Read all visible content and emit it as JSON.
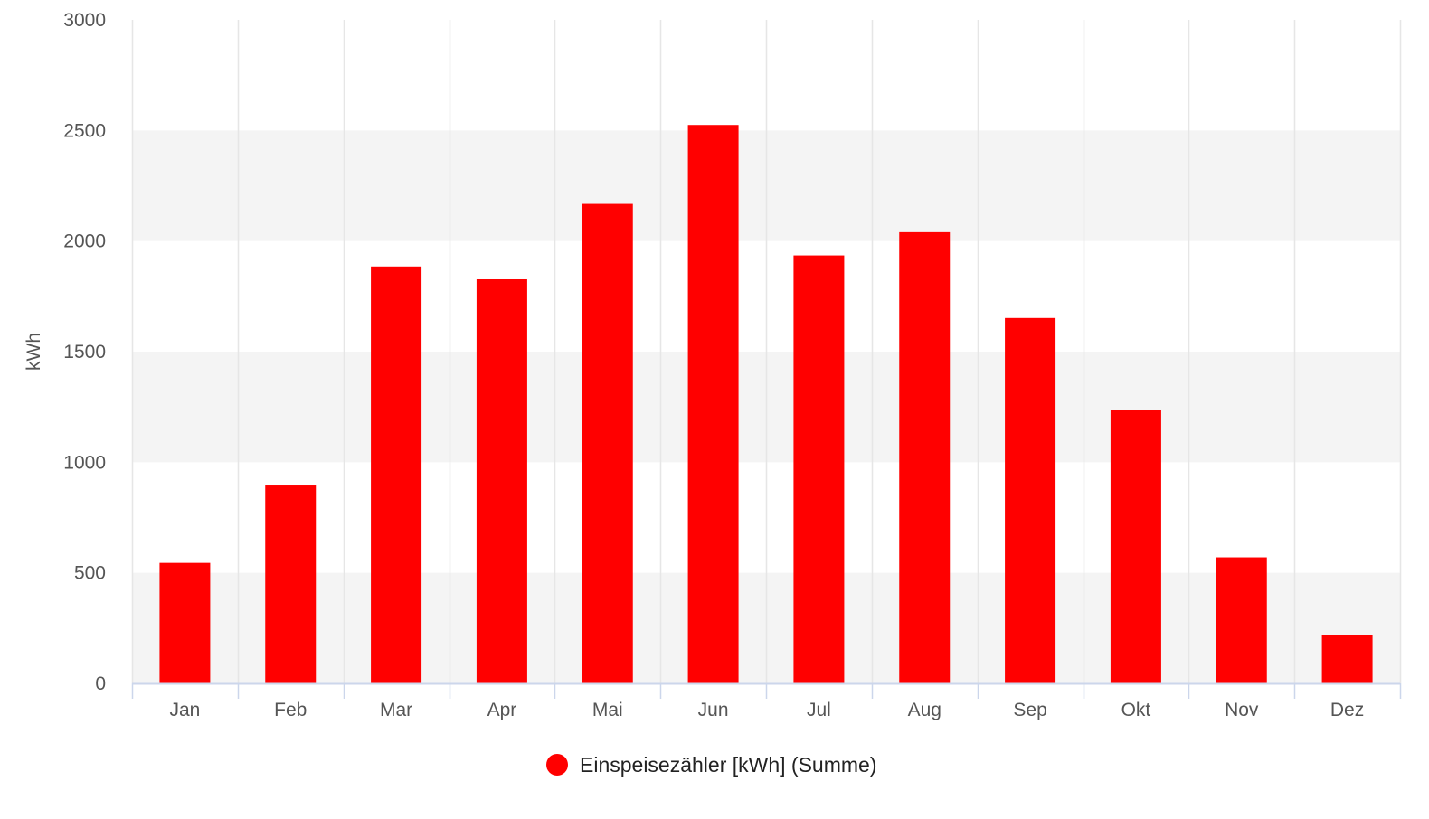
{
  "chart_data": {
    "type": "bar",
    "categories": [
      "Jan",
      "Feb",
      "Mar",
      "Apr",
      "Mai",
      "Jun",
      "Jul",
      "Aug",
      "Sep",
      "Okt",
      "Nov",
      "Dez"
    ],
    "series": [
      {
        "name": "Einspeisezähler [kWh] (Summe)",
        "color": "#ff0000",
        "values": [
          545,
          895,
          1885,
          1827,
          2168,
          2525,
          1935,
          2040,
          1652,
          1238,
          570,
          220
        ]
      }
    ],
    "ylabel": "kWh",
    "ylim": [
      0,
      3000
    ],
    "yticks": [
      0,
      500,
      1000,
      1500,
      2000,
      2500,
      3000
    ],
    "grid": {
      "vertical_lines": true,
      "alternating_bands": true,
      "band_color": "#f4f4f4",
      "line_color": "#e6e6e6"
    },
    "legend": {
      "position": "bottom-center",
      "symbol": "circle"
    }
  }
}
